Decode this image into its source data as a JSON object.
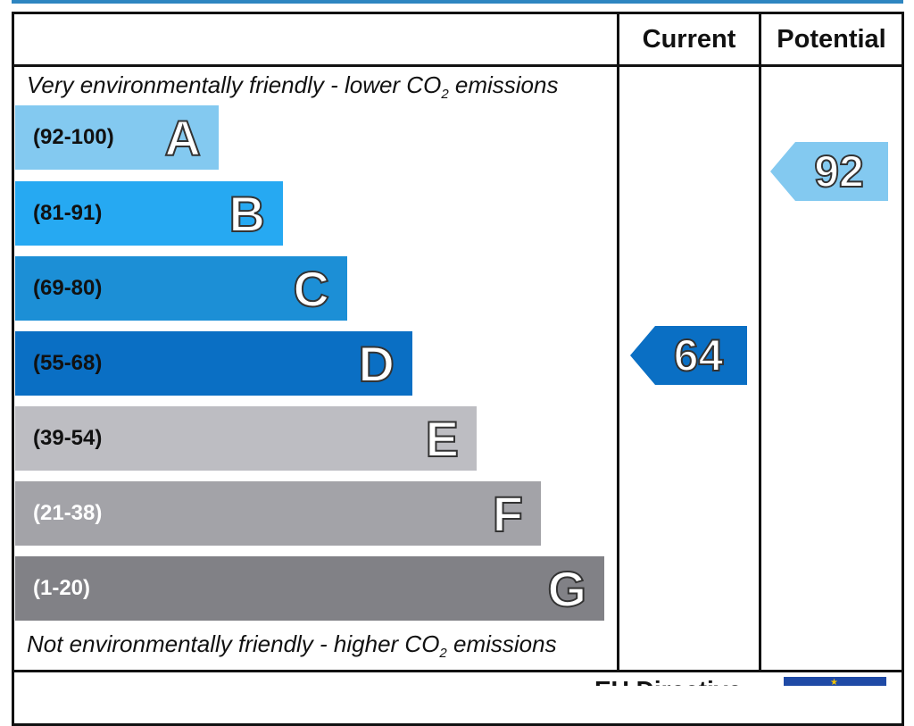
{
  "header": {
    "current": "Current",
    "potential": "Potential"
  },
  "notes": {
    "top_prefix": "Very environmentally friendly - lower CO",
    "top_sub": "2",
    "top_suffix": " emissions",
    "bottom_prefix": "Not environmentally friendly - higher CO",
    "bottom_sub": "2",
    "bottom_suffix": " emissions"
  },
  "bands": [
    {
      "range": "(92-100)",
      "letter": "A",
      "color": "#83c9f0",
      "range_color": "#111111"
    },
    {
      "range": "(81-91)",
      "letter": "B",
      "color": "#26a9f2",
      "range_color": "#111111"
    },
    {
      "range": "(69-80)",
      "letter": "C",
      "color": "#1c8fd6",
      "range_color": "#111111"
    },
    {
      "range": "(55-68)",
      "letter": "D",
      "color": "#0a6fc4",
      "range_color": "#111111"
    },
    {
      "range": "(39-54)",
      "letter": "E",
      "color": "#bdbdc2",
      "range_color": "#111111"
    },
    {
      "range": "(21-38)",
      "letter": "F",
      "color": "#a3a3a8",
      "range_color": "#ffffff"
    },
    {
      "range": "(1-20)",
      "letter": "G",
      "color": "#818186",
      "range_color": "#ffffff"
    }
  ],
  "ratings": {
    "current": {
      "value": "64",
      "band": "D",
      "color": "#0a6fc4"
    },
    "potential": {
      "value": "92",
      "band": "A",
      "color": "#83c9f0"
    }
  },
  "footer": {
    "text": "EU Directive"
  }
}
